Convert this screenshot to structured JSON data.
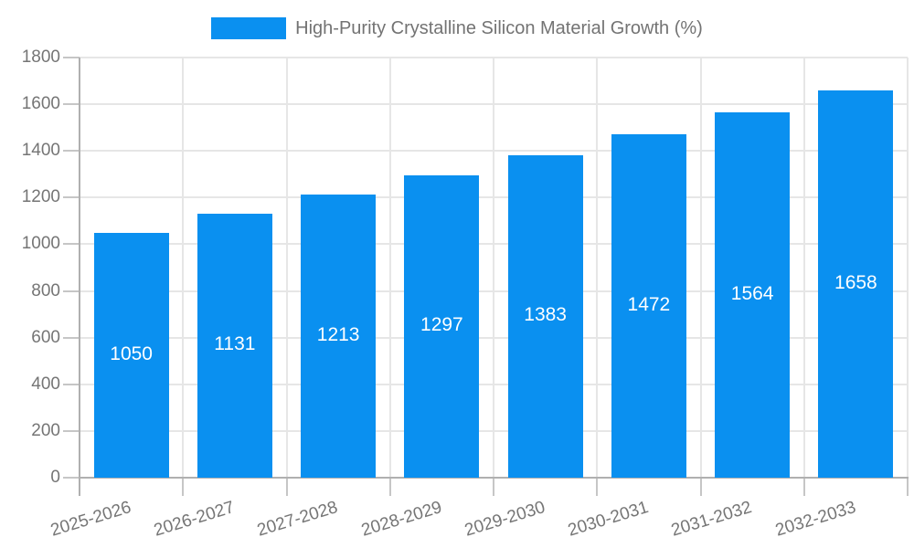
{
  "legend": {
    "label": "High-Purity Crystalline Silicon Material Growth (%)"
  },
  "chart_data": {
    "type": "bar",
    "title": "High-Purity Crystalline Silicon Material Growth (%)",
    "series_name": "High-Purity Crystalline Silicon Material Growth (%)",
    "categories": [
      "2025-2026",
      "2026-2027",
      "2027-2028",
      "2028-2029",
      "2029-2030",
      "2030-2031",
      "2031-2032",
      "2032-2033"
    ],
    "values": [
      1050,
      1131,
      1213,
      1297,
      1383,
      1472,
      1564,
      1658
    ],
    "xlabel": "",
    "ylabel": "",
    "ylim": [
      0,
      1800
    ],
    "yticks": [
      0,
      200,
      400,
      600,
      800,
      1000,
      1200,
      1400,
      1600,
      1800
    ],
    "grid": "horizontal and vertical light gray gridlines",
    "legend_position": "top-center",
    "value_label_position": "inside-center",
    "x_tick_rotation_deg": -17
  },
  "colors": {
    "bar": "#0a90f0",
    "grid": "#e6e6e6",
    "axis": "#b0b0b0",
    "tick": "#c6c6c6",
    "text": "#757575",
    "legend_text": "#737373",
    "value_label": "#ffffff",
    "background": "#ffffff"
  }
}
